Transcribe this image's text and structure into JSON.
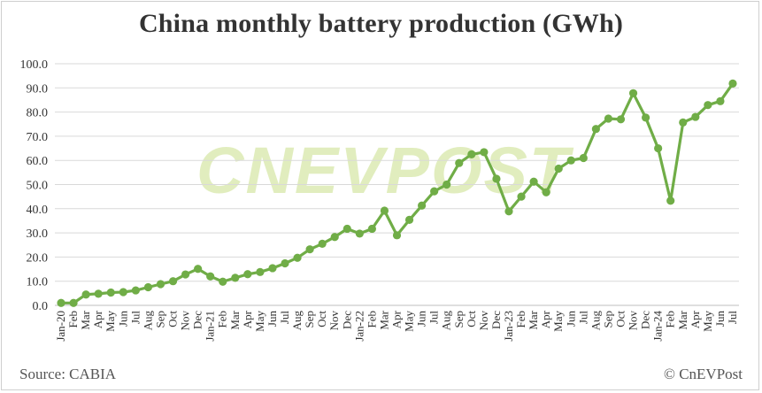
{
  "title": "China monthly battery production (GWh)",
  "source": "Source: CABIA",
  "credit": "© CnEVPost",
  "watermark": "CNEVPOST",
  "colors": {
    "line": "#70ad47",
    "grid": "#d9d9d9",
    "axis": "#bfbfbf",
    "text": "#333333",
    "watermark": "#dcebb3"
  },
  "chart_data": {
    "type": "line",
    "title": "China monthly battery production (GWh)",
    "xlabel": "",
    "ylabel": "",
    "ylim": [
      0,
      100
    ],
    "yticks": [
      "0.0",
      "10.0",
      "20.0",
      "30.0",
      "40.0",
      "50.0",
      "60.0",
      "70.0",
      "80.0",
      "90.0",
      "100.0"
    ],
    "grid": true,
    "legend": "none",
    "categories": [
      "Jan-20",
      "Feb",
      "Mar",
      "Apr",
      "May",
      "Jun",
      "Jul",
      "Aug",
      "Sep",
      "Oct",
      "Nov",
      "Dec",
      "Jan-21",
      "Feb",
      "Mar",
      "Apr",
      "May",
      "Jun",
      "Jul",
      "Aug",
      "Sep",
      "Oct",
      "Nov",
      "Dec",
      "Jan-22",
      "Feb",
      "Mar",
      "Apr",
      "May",
      "Jun",
      "Jul",
      "Aug",
      "Sep",
      "Oct",
      "Nov",
      "Dec",
      "Jan-23",
      "Feb",
      "Mar",
      "Apr",
      "May",
      "Jun",
      "Jul",
      "Aug",
      "Sep",
      "Oct",
      "Nov",
      "Dec",
      "Jan-24",
      "Feb",
      "Mar",
      "Apr",
      "May",
      "Jun",
      "Jul"
    ],
    "series": [
      {
        "values": [
          1.0,
          1.0,
          4.5,
          4.8,
          5.3,
          5.5,
          6.2,
          7.5,
          8.8,
          10.0,
          12.8,
          15.1,
          12.0,
          9.8,
          11.4,
          12.9,
          13.8,
          15.4,
          17.4,
          19.7,
          23.2,
          25.5,
          28.3,
          31.7,
          29.7,
          31.7,
          39.2,
          29.0,
          35.4,
          41.3,
          47.2,
          50.0,
          58.9,
          62.5,
          63.4,
          52.4,
          38.9,
          45.0,
          51.2,
          46.8,
          56.6,
          60.0,
          61.0,
          73.0,
          77.3,
          77.0,
          87.8,
          77.7,
          65.0,
          43.3,
          75.7,
          78.0,
          82.9,
          84.5,
          91.8
        ]
      }
    ]
  }
}
